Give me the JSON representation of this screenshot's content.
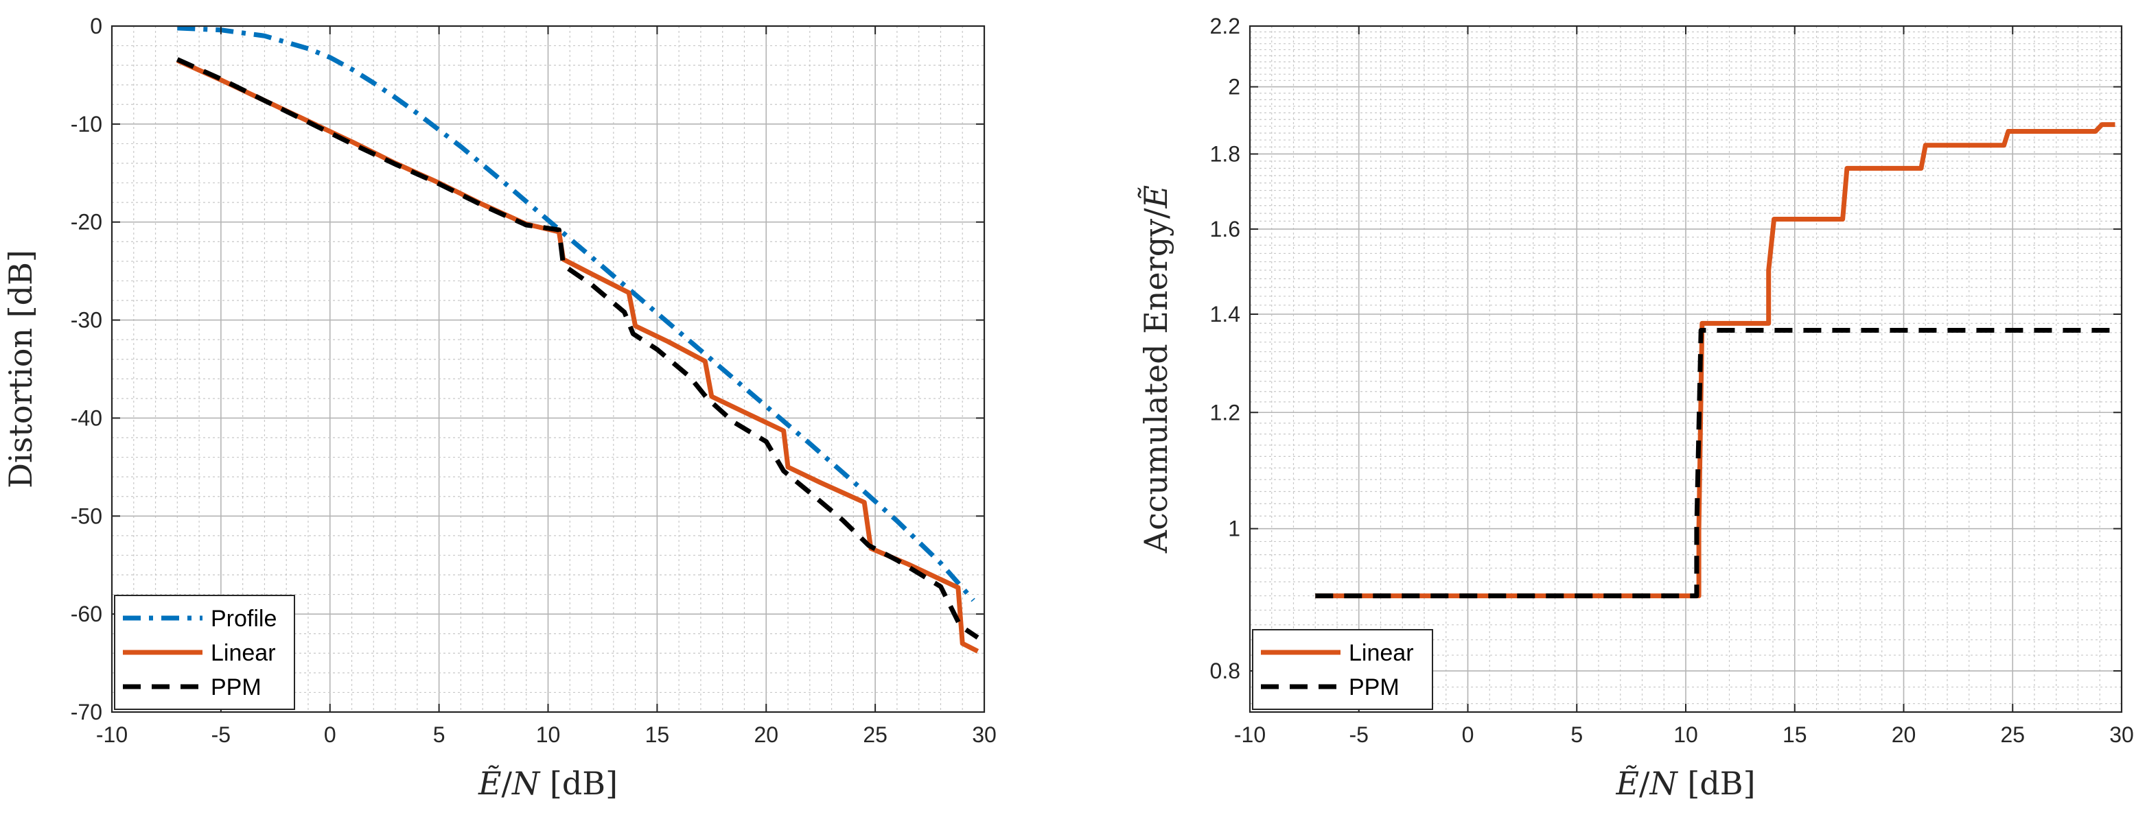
{
  "chart_data": [
    {
      "type": "line",
      "title": "",
      "xlabel": "Ẽ/N [dB]",
      "ylabel": "Distortion [dB]",
      "xlim": [
        -10,
        30
      ],
      "ylim": [
        -70,
        0
      ],
      "xticks": [
        "-10",
        "-5",
        "0",
        "5",
        "10",
        "15",
        "20",
        "25",
        "30"
      ],
      "yticks": [
        "0",
        "-10",
        "-20",
        "-30",
        "-40",
        "-50",
        "-60",
        "-70"
      ],
      "grid": true,
      "legend_position": "bottom-left",
      "series": [
        {
          "name": "Profile",
          "color": "#0072bd",
          "style": "dash-dot",
          "x": [
            -7,
            -5,
            -3,
            -1,
            0,
            1,
            2,
            3,
            4,
            5,
            6,
            8,
            10,
            12,
            14,
            16,
            18,
            20,
            22,
            24,
            26,
            28,
            29.5
          ],
          "y": [
            -0.2,
            -0.4,
            -1,
            -2.3,
            -3.2,
            -4.4,
            -5.8,
            -7.3,
            -8.9,
            -10.6,
            -12.3,
            -16,
            -19.8,
            -23.6,
            -27.4,
            -31.2,
            -35,
            -38.8,
            -42.6,
            -46.5,
            -50.5,
            -54.8,
            -58.6
          ]
        },
        {
          "name": "Linear",
          "color": "#d95319",
          "style": "solid",
          "x": [
            -7,
            -5,
            -3,
            -1,
            1,
            3,
            5,
            7,
            9,
            10.5,
            10.7,
            12,
            13.7,
            14,
            15.5,
            17.2,
            17.5,
            19,
            20.8,
            21,
            22.5,
            24.5,
            24.8,
            26.5,
            28.8,
            29,
            29.7
          ],
          "y": [
            -3.5,
            -5.5,
            -7.6,
            -9.7,
            -11.8,
            -14,
            -16,
            -18.2,
            -20.2,
            -21,
            -23.8,
            -25.3,
            -27.2,
            -30.6,
            -32.2,
            -34.2,
            -37.8,
            -39.4,
            -41.3,
            -45,
            -46.6,
            -48.6,
            -53.3,
            -54.9,
            -57.3,
            -63,
            -63.8
          ]
        },
        {
          "name": "PPM",
          "color": "#000000",
          "style": "dashed",
          "x": [
            -7,
            -5,
            -3,
            -1,
            1,
            3,
            5,
            7,
            9,
            10.5,
            10.7,
            12,
            13.5,
            13.9,
            15,
            16.5,
            17.3,
            18.5,
            20,
            20.8,
            22,
            23.5,
            24.7,
            26,
            28,
            28.9,
            29.7
          ],
          "y": [
            -3.4,
            -5.4,
            -7.6,
            -9.8,
            -12,
            -14.1,
            -16.1,
            -18.3,
            -20.3,
            -20.8,
            -24.4,
            -26.4,
            -29.2,
            -31.4,
            -33,
            -35.8,
            -38,
            -40.4,
            -42.4,
            -45.4,
            -47.6,
            -50.4,
            -53,
            -54.5,
            -57.2,
            -61.2,
            -62.4
          ]
        }
      ]
    },
    {
      "type": "line",
      "title": "",
      "xlabel": "Ẽ/N [dB]",
      "ylabel": "Accumulated Energy/Ẽ",
      "xlim": [
        -10,
        30
      ],
      "yscale": "log",
      "ylim": [
        0.75,
        2.2
      ],
      "xticks": [
        "-10",
        "-5",
        "0",
        "5",
        "10",
        "15",
        "20",
        "25",
        "30"
      ],
      "yticks": [
        "0.8",
        "1",
        "1.2",
        "1.4",
        "1.6",
        "1.8",
        "2",
        "2.2"
      ],
      "grid": true,
      "legend_position": "bottom-left",
      "series": [
        {
          "name": "Linear",
          "color": "#d95319",
          "style": "solid",
          "x": [
            -7,
            10.6,
            10.6,
            10.75,
            13.8,
            13.8,
            14.05,
            17.2,
            17.4,
            20.8,
            21,
            24.6,
            24.8,
            28.8,
            29.1,
            29.7
          ],
          "y": [
            0.9,
            0.9,
            1.0,
            1.38,
            1.38,
            1.5,
            1.625,
            1.625,
            1.76,
            1.76,
            1.825,
            1.825,
            1.865,
            1.865,
            1.885,
            1.885
          ]
        },
        {
          "name": "PPM",
          "color": "#000000",
          "style": "dashed",
          "x": [
            -7,
            10.5,
            10.5,
            10.7,
            29.7
          ],
          "y": [
            0.9,
            0.9,
            1.0,
            1.365,
            1.365
          ]
        }
      ]
    }
  ]
}
